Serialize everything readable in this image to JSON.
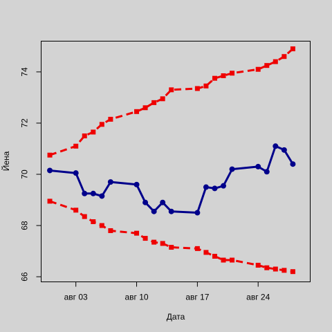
{
  "chart_data": {
    "type": "line",
    "xlabel": "Дата",
    "ylabel": "Йена",
    "x_tick_labels": [
      "авг 03",
      "авг 10",
      "авг 17",
      "авг 24"
    ],
    "x_ticks": [
      "2015-08-03",
      "2015-08-10",
      "2015-08-17",
      "2015-08-24"
    ],
    "y_ticks": [
      66,
      68,
      70,
      72,
      74
    ],
    "xlim": [
      "2015-07-30",
      "2015-08-30"
    ],
    "ylim": [
      65.8,
      75.2
    ],
    "grid": false,
    "x": [
      "2015-07-31",
      "2015-08-03",
      "2015-08-04",
      "2015-08-05",
      "2015-08-06",
      "2015-08-07",
      "2015-08-10",
      "2015-08-11",
      "2015-08-12",
      "2015-08-13",
      "2015-08-14",
      "2015-08-17",
      "2015-08-18",
      "2015-08-19",
      "2015-08-20",
      "2015-08-21",
      "2015-08-24",
      "2015-08-25",
      "2015-08-26",
      "2015-08-27",
      "2015-08-28"
    ],
    "series": [
      {
        "color": "#00008b",
        "line_style": "solid",
        "marker": "circle",
        "values": [
          70.15,
          70.05,
          69.25,
          69.25,
          69.15,
          69.7,
          69.6,
          68.9,
          68.55,
          68.9,
          68.55,
          68.5,
          69.5,
          69.45,
          69.55,
          70.2,
          70.3,
          70.1,
          71.1,
          70.95,
          70.4
        ]
      },
      {
        "color": "#ee0000",
        "line_style": "dashed",
        "marker": "square",
        "values": [
          70.75,
          71.1,
          71.5,
          71.65,
          71.95,
          72.15,
          72.45,
          72.6,
          72.8,
          72.95,
          73.3,
          73.35,
          73.45,
          73.75,
          73.85,
          73.95,
          74.1,
          74.25,
          74.4,
          74.6,
          74.9
        ]
      },
      {
        "color": "#ee0000",
        "line_style": "dashed",
        "marker": "square",
        "values": [
          68.95,
          68.6,
          68.35,
          68.15,
          68.0,
          67.8,
          67.7,
          67.5,
          67.35,
          67.3,
          67.15,
          67.1,
          66.95,
          66.8,
          66.65,
          66.65,
          66.45,
          66.35,
          66.3,
          66.25,
          66.2
        ]
      }
    ]
  }
}
